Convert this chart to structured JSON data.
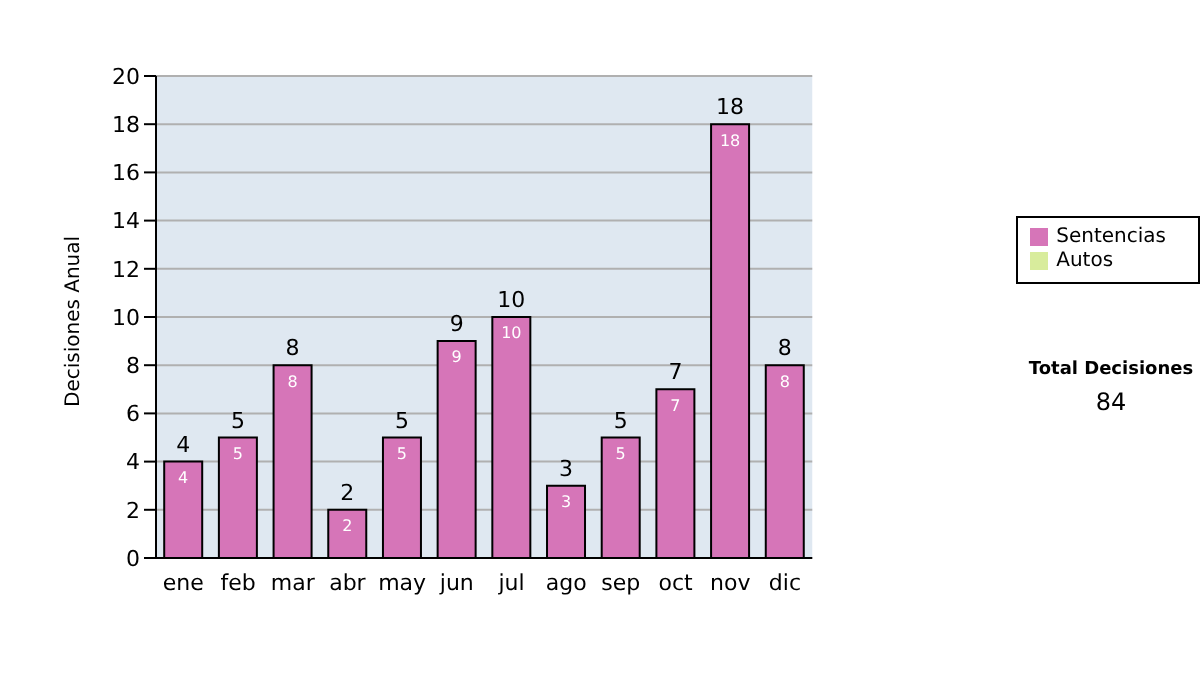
{
  "chart_data": {
    "type": "bar",
    "stacked": true,
    "ylabel": "Decisiones Anual",
    "categories": [
      "ene",
      "feb",
      "mar",
      "abr",
      "may",
      "jun",
      "jul",
      "ago",
      "sep",
      "oct",
      "nov",
      "dic"
    ],
    "series": [
      {
        "name": "Sentencias",
        "color": "#d675b8",
        "values": [
          4,
          5,
          8,
          2,
          5,
          9,
          10,
          3,
          5,
          7,
          18,
          8
        ],
        "value_labels": [
          "4",
          "5",
          "8",
          "2",
          "5",
          "9",
          "10",
          "3",
          "5",
          "7",
          "18",
          "8"
        ]
      },
      {
        "name": "Autos",
        "color": "#d8ec9c",
        "values": [
          0,
          0,
          0,
          0,
          0,
          0,
          0,
          0,
          0,
          0,
          0,
          0
        ]
      }
    ],
    "totals": [
      "4",
      "5",
      "8",
      "2",
      "5",
      "9",
      "10",
      "3",
      "5",
      "7",
      "18",
      "8"
    ],
    "ylim": [
      0,
      20
    ],
    "yticks": [
      0,
      2,
      4,
      6,
      8,
      10,
      12,
      14,
      16,
      18,
      20
    ],
    "grid": "y",
    "legend": "right",
    "annotations": [
      "Total Decisiones",
      "84"
    ]
  }
}
